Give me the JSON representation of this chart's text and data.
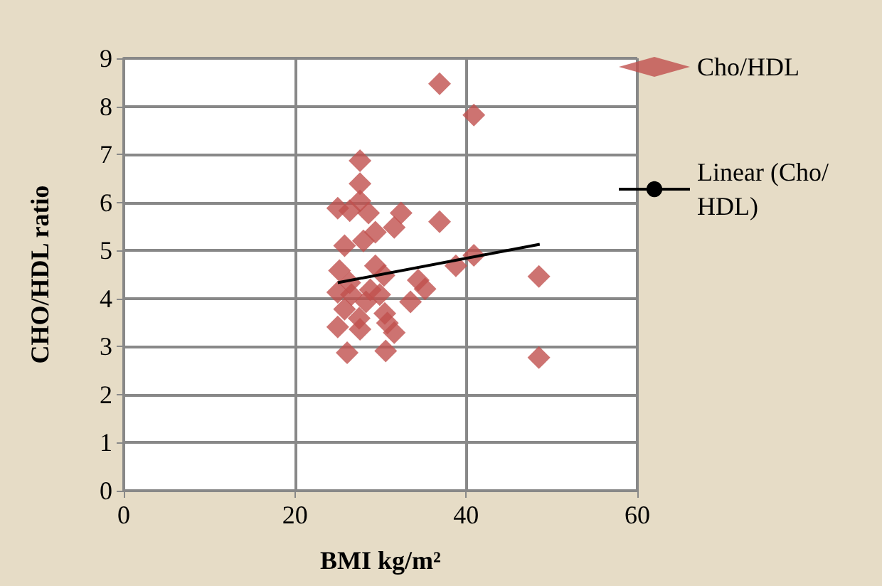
{
  "chart_data": {
    "type": "scatter",
    "xlabel": "BMI kg/m²",
    "ylabel": "CHO/HDL ratio",
    "xlim": [
      0,
      60
    ],
    "xticks": [
      0,
      20,
      40,
      60
    ],
    "ylim": [
      0,
      9
    ],
    "yticks": [
      0,
      1,
      2,
      3,
      4,
      5,
      6,
      7,
      8,
      9
    ],
    "grid": true,
    "legend": "right",
    "marker": "diamond",
    "series": [
      {
        "name": "Cho/HDL",
        "color": "#c0504d",
        "x": [
          36.9,
          40.9,
          27.6,
          27.6,
          25.0,
          26.4,
          27.6,
          28.6,
          32.4,
          36.9,
          29.4,
          31.6,
          28.0,
          25.8,
          25.2,
          28.8,
          30.4,
          34.4,
          35.2,
          38.8,
          40.9,
          48.5,
          25.0,
          26.6,
          28.8,
          29.9,
          25.8,
          28.3,
          30.5,
          33.5,
          25.0,
          27.6,
          31.6,
          26.1,
          30.6,
          48.5,
          26.4,
          29.4,
          27.5,
          30.8
        ],
        "values": [
          8.47,
          7.82,
          6.87,
          6.39,
          5.88,
          5.83,
          6.03,
          5.78,
          5.78,
          5.6,
          5.38,
          5.48,
          5.2,
          5.1,
          4.58,
          null,
          4.48,
          4.38,
          4.2,
          4.68,
          4.9,
          4.46,
          4.13,
          4.08,
          4.18,
          4.08,
          3.78,
          3.93,
          3.69,
          3.93,
          3.41,
          3.36,
          3.29,
          2.87,
          2.91,
          2.77,
          4.33,
          4.68,
          3.59,
          3.49
        ]
      },
      {
        "name": "Linear (Cho/HDL)",
        "type": "line",
        "color": "#000000",
        "marker": "none",
        "x": [
          25.0,
          48.6
        ],
        "values": [
          4.33,
          5.13
        ]
      }
    ]
  }
}
